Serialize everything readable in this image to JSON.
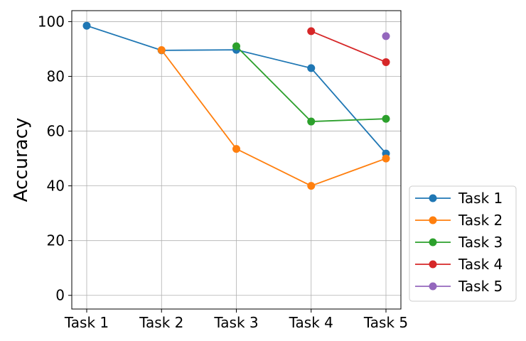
{
  "chart_data": {
    "type": "line",
    "title": "",
    "xlabel": "",
    "ylabel": "Accuracy",
    "categories": [
      "Task 1",
      "Task 2",
      "Task 3",
      "Task 4",
      "Task 5"
    ],
    "ylim": [
      -5,
      104
    ],
    "yticks": [
      0,
      20,
      40,
      60,
      80,
      100
    ],
    "grid": true,
    "legend_position": "outside-bottom-right",
    "series": [
      {
        "name": "Task 1",
        "color": "#1f77b4",
        "values": [
          98.5,
          89.5,
          89.7,
          83.0,
          51.8
        ]
      },
      {
        "name": "Task 2",
        "color": "#ff7f0e",
        "values": [
          null,
          89.6,
          53.5,
          40.0,
          50.0
        ]
      },
      {
        "name": "Task 3",
        "color": "#2ca02c",
        "values": [
          null,
          null,
          91.0,
          63.5,
          64.5
        ]
      },
      {
        "name": "Task 4",
        "color": "#d62728",
        "values": [
          null,
          null,
          null,
          96.5,
          85.2
        ]
      },
      {
        "name": "Task 5",
        "color": "#9467bd",
        "values": [
          null,
          null,
          null,
          null,
          94.7
        ]
      }
    ]
  }
}
